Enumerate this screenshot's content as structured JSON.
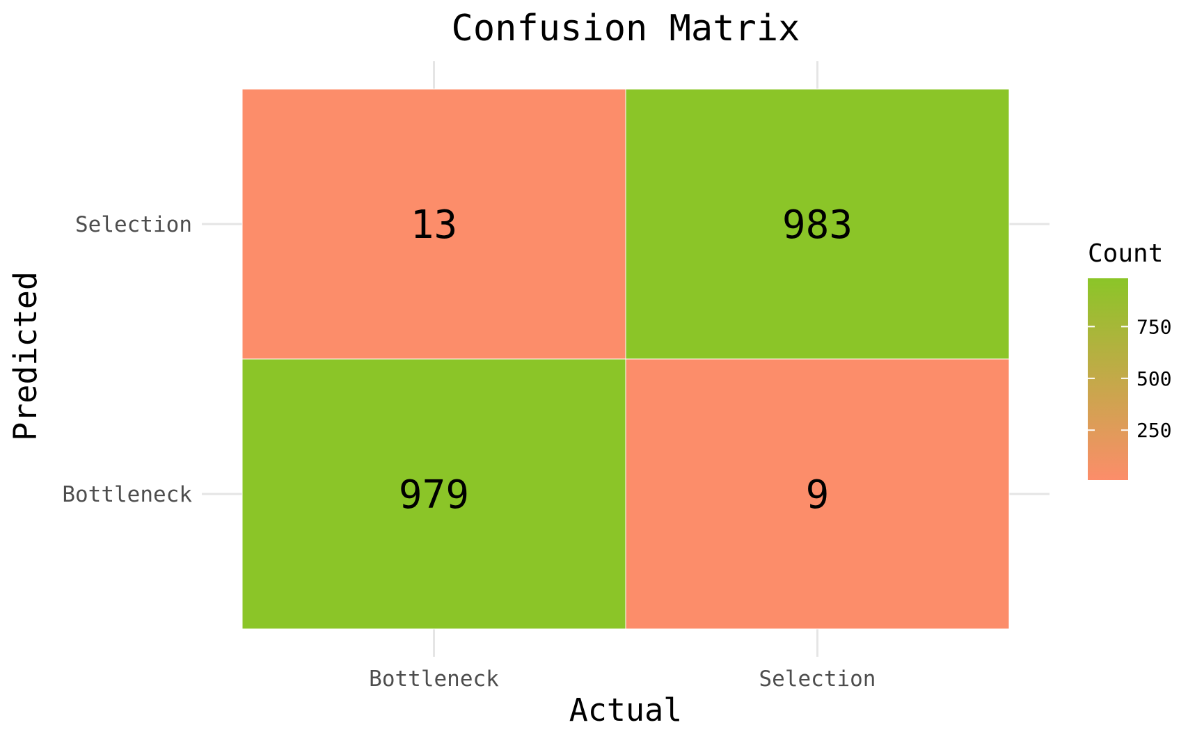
{
  "chart_data": {
    "type": "heatmap",
    "title": "Confusion Matrix",
    "xlabel": "Actual",
    "ylabel": "Predicted",
    "x_categories": [
      "Bottleneck",
      "Selection"
    ],
    "y_categories": [
      "Bottleneck",
      "Selection"
    ],
    "cells": [
      {
        "actual": "Bottleneck",
        "predicted": "Selection",
        "count": 13
      },
      {
        "actual": "Selection",
        "predicted": "Selection",
        "count": 983
      },
      {
        "actual": "Bottleneck",
        "predicted": "Bottleneck",
        "count": 979
      },
      {
        "actual": "Selection",
        "predicted": "Bottleneck",
        "count": 9
      }
    ],
    "legend": {
      "title": "Count",
      "ticks": [
        250,
        500,
        750
      ],
      "range": [
        9,
        983
      ],
      "low_color": "#fc8d6a",
      "high_color": "#8bc528",
      "placement": "right"
    },
    "grid": true
  }
}
